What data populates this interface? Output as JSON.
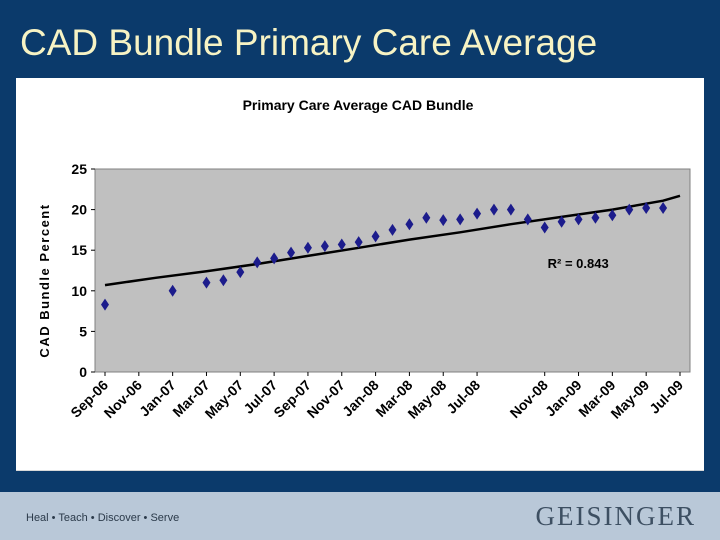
{
  "slide": {
    "title": "CAD Bundle Primary Care Average",
    "footer_tagline": "Heal • Teach • Discover • Serve",
    "logo_text": "GEISINGER",
    "colors": {
      "background": "#0b3a6b",
      "title": "#f7f3c4",
      "footer": "#b9c8d8",
      "plot_area": "#c0c0c0",
      "marker": "#1c1c8c",
      "trend": "#000000"
    }
  },
  "chart_data": {
    "type": "scatter",
    "title": "Primary Care Average CAD Bundle",
    "ylabel": "CAD Bundle Percent",
    "xlabel": "",
    "ylim": [
      0,
      25
    ],
    "yticks": [
      0,
      5,
      10,
      15,
      20,
      25
    ],
    "x_tick_labels": [
      "Sep-06",
      "Nov-06",
      "Jan-07",
      "Mar-07",
      "May-07",
      "Jul-07",
      "Sep-07",
      "Nov-07",
      "Jan-08",
      "Mar-08",
      "May-08",
      "Jul-08",
      "Nov-08",
      "Jan-09",
      "Mar-09",
      "May-09",
      "Jul-09"
    ],
    "grid": false,
    "legend": "none",
    "series": [
      {
        "points": [
          {
            "x": "Sep-06",
            "y": 8.3
          },
          {
            "x": "Jan-07",
            "y": 10.0
          },
          {
            "x": "Mar-07",
            "y": 11.0
          },
          {
            "x": "Apr-07",
            "y": 11.3
          },
          {
            "x": "May-07",
            "y": 12.3
          },
          {
            "x": "Jun-07",
            "y": 13.5
          },
          {
            "x": "Jul-07",
            "y": 14.0
          },
          {
            "x": "Aug-07",
            "y": 14.7
          },
          {
            "x": "Sep-07",
            "y": 15.3
          },
          {
            "x": "Oct-07",
            "y": 15.5
          },
          {
            "x": "Nov-07",
            "y": 15.7
          },
          {
            "x": "Dec-07",
            "y": 16.0
          },
          {
            "x": "Jan-08",
            "y": 16.7
          },
          {
            "x": "Feb-08",
            "y": 17.5
          },
          {
            "x": "Mar-08",
            "y": 18.2
          },
          {
            "x": "Apr-08",
            "y": 19.0
          },
          {
            "x": "May-08",
            "y": 18.7
          },
          {
            "x": "Jun-08",
            "y": 18.8
          },
          {
            "x": "Jul-08",
            "y": 19.5
          },
          {
            "x": "Aug-08",
            "y": 20.0
          },
          {
            "x": "Sep-08",
            "y": 20.0
          },
          {
            "x": "Oct-08",
            "y": 18.8
          },
          {
            "x": "Nov-08",
            "y": 17.8
          },
          {
            "x": "Dec-08",
            "y": 18.5
          },
          {
            "x": "Jan-09",
            "y": 18.8
          },
          {
            "x": "Feb-09",
            "y": 19.0
          },
          {
            "x": "Mar-09",
            "y": 19.3
          },
          {
            "x": "Apr-09",
            "y": 20.0
          },
          {
            "x": "May-09",
            "y": 20.2
          },
          {
            "x": "Jun-09",
            "y": 20.2
          }
        ]
      }
    ],
    "trendline": {
      "type": "polynomial",
      "r_squared_label": "R² = 0.843",
      "points": [
        {
          "x": "Sep-06",
          "y": 10.7
        },
        {
          "x": "Dec-06",
          "y": 11.6
        },
        {
          "x": "Mar-07",
          "y": 12.4
        },
        {
          "x": "Jun-07",
          "y": 13.3
        },
        {
          "x": "Sep-07",
          "y": 14.3
        },
        {
          "x": "Dec-07",
          "y": 15.3
        },
        {
          "x": "Mar-08",
          "y": 16.3
        },
        {
          "x": "Jun-08",
          "y": 17.2
        },
        {
          "x": "Sep-08",
          "y": 18.2
        },
        {
          "x": "Dec-08",
          "y": 19.1
        },
        {
          "x": "Mar-09",
          "y": 20.0
        },
        {
          "x": "Jun-09",
          "y": 21.1
        },
        {
          "x": "Jul-09",
          "y": 21.7
        }
      ]
    }
  }
}
